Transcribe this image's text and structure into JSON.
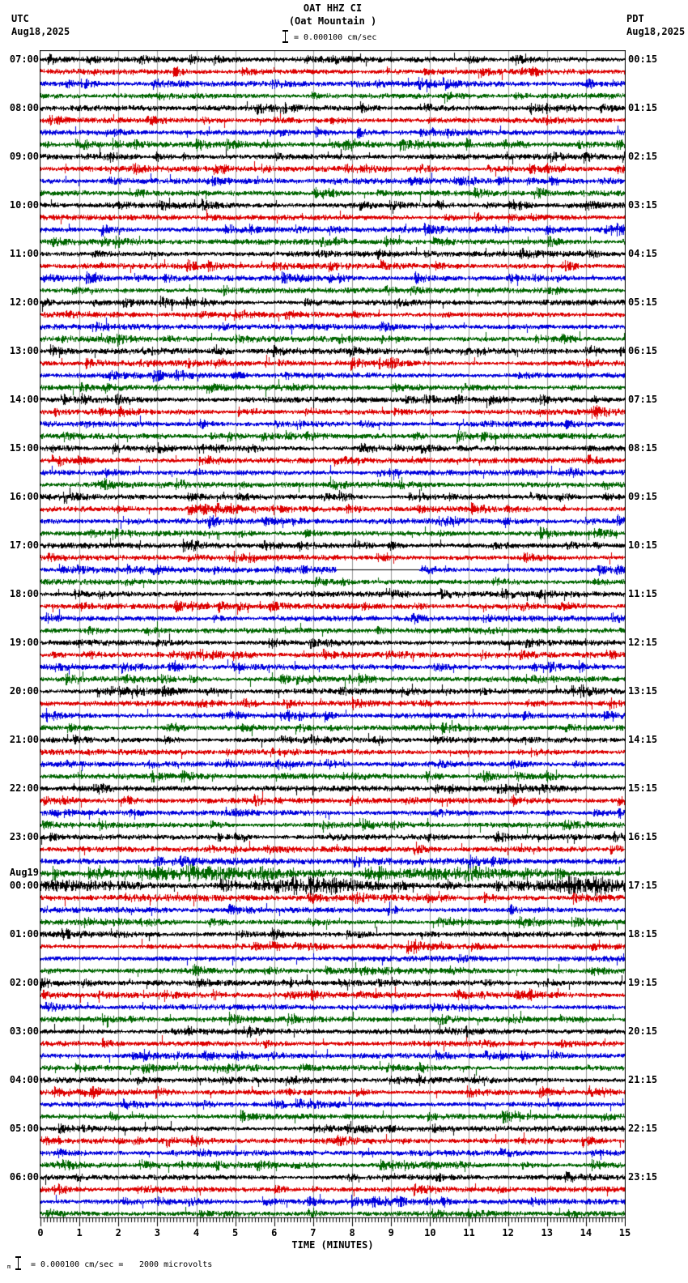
{
  "header": {
    "station_title": "OAT HHZ CI",
    "station_subtitle": "(Oat Mountain )",
    "scale_text": "= 0.000100 cm/sec",
    "left_timezone": "UTC",
    "left_date": "Aug18,2025",
    "right_timezone": "PDT",
    "right_date": "Aug18,2025"
  },
  "footer": {
    "symbol": "m",
    "scale_text": "= 0.000100 cm/sec =",
    "value_text": "2000 microvolts"
  },
  "colors": {
    "background": "#ffffff",
    "border": "#000000",
    "grid": "#999999",
    "baseline": "#000000",
    "traces": {
      "black": "#000000",
      "red": "#dd0000",
      "blue": "#0000dd",
      "green": "#006600"
    }
  },
  "chart_data": {
    "type": "helicorder",
    "station": "OAT",
    "channel": "HHZ",
    "network": "CI",
    "station_name": "Oat Mountain",
    "start_utc": "Aug18,2025 07:00",
    "end_utc": "Aug19,2025 07:00",
    "minutes_per_row": 15,
    "rows_per_hour": 4,
    "total_rows": 96,
    "trace_color_cycle": [
      "black",
      "red",
      "blue",
      "green"
    ],
    "x_axis": {
      "title": "TIME (MINUTES)",
      "tick_labels": [
        "0",
        "1",
        "2",
        "3",
        "4",
        "5",
        "6",
        "7",
        "8",
        "9",
        "10",
        "11",
        "12",
        "13",
        "14",
        "15"
      ],
      "minor_ticks_per_minute": 12,
      "range_minutes": [
        0,
        15
      ]
    },
    "grid": {
      "vertical_line_every_minutes": 1,
      "on": true
    },
    "utc_hour_labels": [
      [
        "07:00"
      ],
      [
        "08:00"
      ],
      [
        "09:00"
      ],
      [
        "10:00"
      ],
      [
        "11:00"
      ],
      [
        "12:00"
      ],
      [
        "13:00"
      ],
      [
        "14:00"
      ],
      [
        "15:00"
      ],
      [
        "16:00"
      ],
      [
        "17:00"
      ],
      [
        "18:00"
      ],
      [
        "19:00"
      ],
      [
        "20:00"
      ],
      [
        "21:00"
      ],
      [
        "22:00"
      ],
      [
        "23:00"
      ],
      [
        "Aug19",
        "00:00"
      ],
      [
        "01:00"
      ],
      [
        "02:00"
      ],
      [
        "03:00"
      ],
      [
        "04:00"
      ],
      [
        "05:00"
      ],
      [
        "06:00"
      ]
    ],
    "pdt_hour_labels": [
      "00:15",
      "01:15",
      "02:15",
      "03:15",
      "04:15",
      "05:15",
      "06:15",
      "07:15",
      "08:15",
      "09:15",
      "10:15",
      "11:15",
      "12:15",
      "13:15",
      "14:15",
      "15:15",
      "16:15",
      "17:15",
      "18:15",
      "19:15",
      "20:15",
      "21:15",
      "22:15",
      "23:15"
    ],
    "amplitude_scale": {
      "bar_cm_per_sec": "0.000100",
      "bar_microvolts": "2000"
    },
    "events": [
      {
        "utc_time": "Aug18 17:30",
        "row_index": 42,
        "row_color": "blue",
        "type": "data_gap",
        "start_minute": 7.6,
        "end_minute": 9.7,
        "description": "trace flat (no data) between ~7.6 and ~9.7 minutes"
      },
      {
        "utc_time": "Aug18 23:45",
        "row_index": 67,
        "row_color": "green",
        "type": "high_amplitude",
        "description": "sustained large oscillations across entire row"
      },
      {
        "utc_time": "Aug19 00:00",
        "row_index": 68,
        "row_color": "black",
        "type": "high_amplitude",
        "description": "sustained large oscillations across entire row"
      }
    ],
    "description": "24-hour helicorder record; each row is 15 minutes, 4 rows per hour, colors cycle black/red/blue/green; continuous background microseismic noise with intermittent bursts"
  }
}
